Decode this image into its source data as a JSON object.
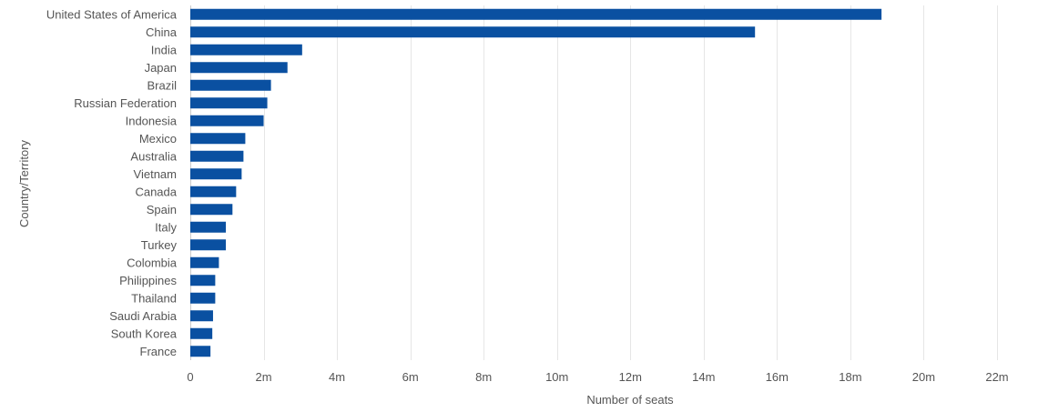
{
  "chart_data": {
    "type": "bar",
    "orientation": "horizontal",
    "categories": [
      "United States of America",
      "China",
      "India",
      "Japan",
      "Brazil",
      "Russian Federation",
      "Indonesia",
      "Mexico",
      "Australia",
      "Vietnam",
      "Canada",
      "Spain",
      "Italy",
      "Turkey",
      "Colombia",
      "Philippines",
      "Thailand",
      "Saudi Arabia",
      "South Korea",
      "France"
    ],
    "values": [
      18.85,
      15.4,
      3.05,
      2.65,
      2.2,
      2.1,
      2.0,
      1.5,
      1.45,
      1.4,
      1.25,
      1.15,
      0.97,
      0.97,
      0.78,
      0.68,
      0.68,
      0.62,
      0.6,
      0.55
    ],
    "xlabel": "Number of seats",
    "ylabel": "Country/Territory",
    "xlim": [
      0,
      22
    ],
    "x_ticks": [
      0,
      2,
      4,
      6,
      8,
      10,
      12,
      14,
      16,
      18,
      20,
      22
    ],
    "x_tick_labels": [
      "0",
      "2m",
      "4m",
      "6m",
      "8m",
      "10m",
      "12m",
      "14m",
      "16m",
      "18m",
      "20m",
      "22m"
    ],
    "bar_color": "#0a50a1",
    "grid": "vertical",
    "legend": "none"
  }
}
